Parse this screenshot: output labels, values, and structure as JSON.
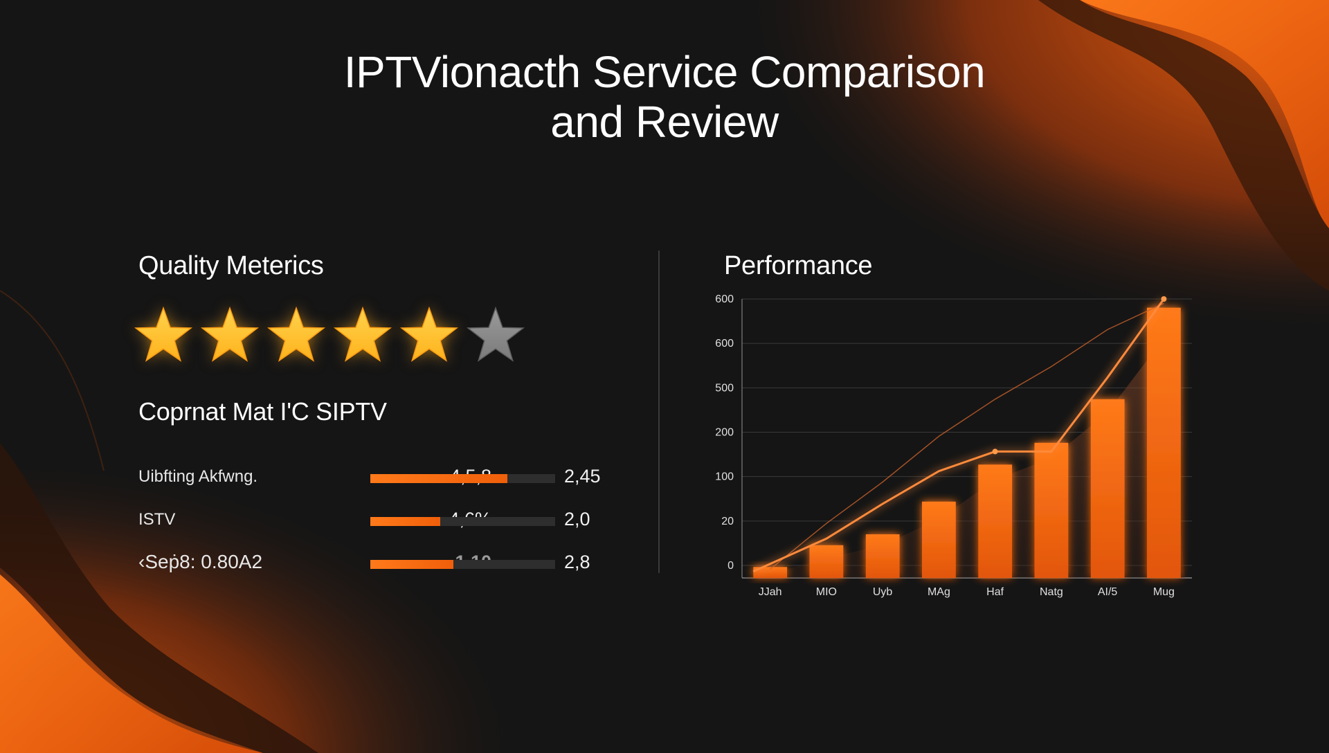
{
  "page": {
    "title_line1": "IPTVionacth Service Comparison",
    "title_line2": "and Review"
  },
  "quality": {
    "title": "Quality Meterics",
    "stars_filled": 5,
    "stars_total": 6,
    "subtitle": "Coprnat Mat I'C SIPTV"
  },
  "metrics": [
    {
      "label": "Uibfting Akfwng.",
      "value": "4,5,8",
      "right": "2,45",
      "fill": 0.74
    },
    {
      "label": "ISTV",
      "value": "4,6%",
      "right": "2,0",
      "fill": 0.38
    },
    {
      "label": "‹Seṗ8: 0.80A2",
      "value": "1 10",
      "right": "2,8",
      "fill": 0.45
    }
  ],
  "performance": {
    "title": "Performance"
  },
  "colors": {
    "accent": "#ff6a0e",
    "star": "#ffb21c",
    "star_empty": "#7b7b7b",
    "background": "#151515"
  },
  "chart_data": {
    "type": "bar",
    "categories": [
      "JJah",
      "MIO",
      "Uyb",
      "MAg",
      "Haf",
      "Natg",
      "AI/5",
      "Mug"
    ],
    "y_tick_labels": [
      "0",
      "20",
      "100",
      "200",
      "500",
      "600",
      "600"
    ],
    "values": [
      0.5,
      1.5,
      2,
      3.5,
      5.2,
      6.2,
      8.2,
      12.4
    ],
    "secondary_values": [
      0.2,
      0.9,
      1.5,
      2.7,
      4.5,
      5.5,
      7.6,
      11.0
    ],
    "line_values": [
      0.3,
      1.8,
      3.4,
      4.9,
      5.8,
      5.8,
      9.2,
      12.8
    ],
    "trend_line_values": [
      0.4,
      2.5,
      4.4,
      6.5,
      8.2,
      9.7,
      11.4,
      12.6
    ],
    "ylim": [
      0,
      12.8
    ],
    "grid": true,
    "xlabel": "",
    "ylabel": ""
  }
}
